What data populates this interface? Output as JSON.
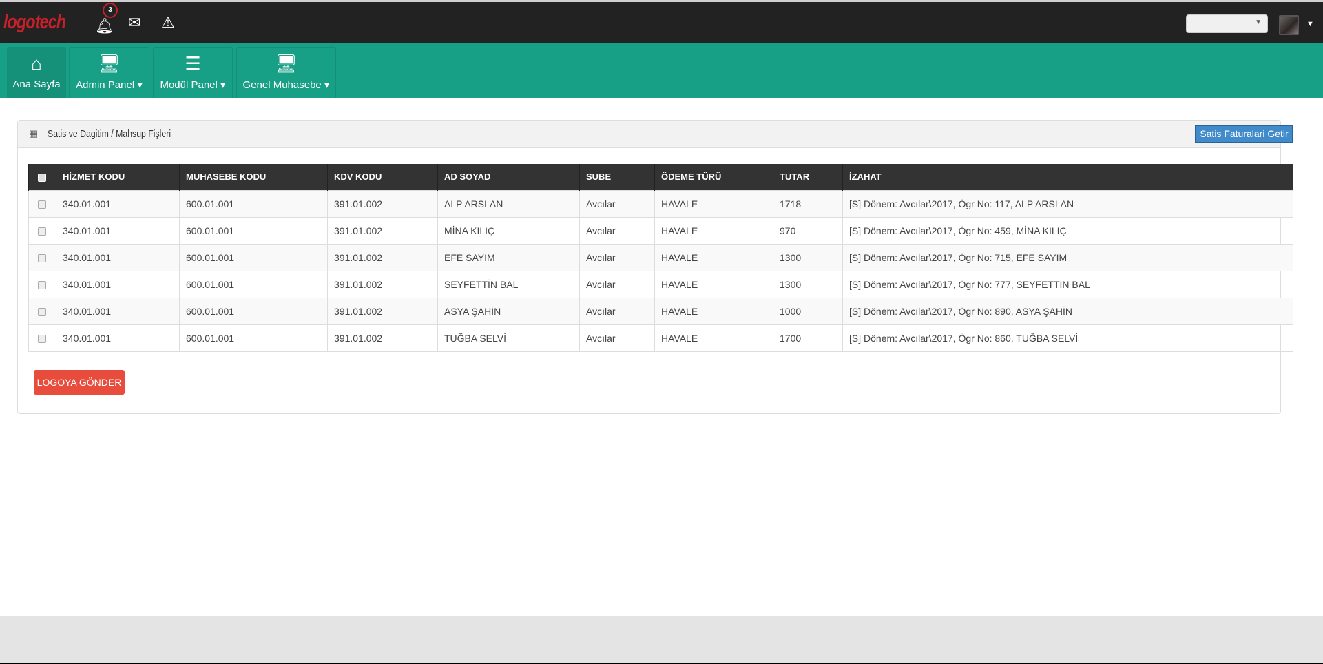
{
  "brand": {
    "logo": "logotech",
    "accent": "#17a086",
    "logo_color": "#c8202a"
  },
  "topbar": {
    "notifications_count": "3",
    "icons": [
      "bell-icon",
      "envelope-icon",
      "warning-icon"
    ],
    "select_value": ""
  },
  "nav": [
    {
      "label": "Ana Sayfa",
      "icon": "home-icon"
    },
    {
      "label": "Admin Panel",
      "icon": "desktop-icon"
    },
    {
      "label": "Modül Panel",
      "icon": "align-left-icon"
    },
    {
      "label": "Genel Muhasebe",
      "icon": "desktop-icon"
    }
  ],
  "panel": {
    "title": "Satis ve Dagitim / Mahsup Fişleri",
    "fetch_button": "Satis Faturalari Getir",
    "send_button": "LOGOYA GÖNDER"
  },
  "table": {
    "headers": [
      "HİZMET KODU",
      "MUHASEBE KODU",
      "KDV KODU",
      "AD SOYAD",
      "SUBE",
      "ÖDEME TÜRÜ",
      "TUTAR",
      "İZAHAT"
    ],
    "rows": [
      [
        "340.01.001",
        "600.01.001",
        "391.01.002",
        "ALP ARSLAN",
        "Avcılar",
        "HAVALE",
        "1718",
        "[S] Dönem: Avcılar\\2017, Ögr No: 117, ALP ARSLAN"
      ],
      [
        "340.01.001",
        "600.01.001",
        "391.01.002",
        "MİNA KILIÇ",
        "Avcılar",
        "HAVALE",
        "970",
        "[S] Dönem: Avcılar\\2017, Ögr No: 459, MİNA KILIÇ"
      ],
      [
        "340.01.001",
        "600.01.001",
        "391.01.002",
        "EFE SAYIM",
        "Avcılar",
        "HAVALE",
        "1300",
        "[S] Dönem: Avcılar\\2017, Ögr No: 715, EFE SAYIM"
      ],
      [
        "340.01.001",
        "600.01.001",
        "391.01.002",
        "SEYFETTİN BAL",
        "Avcılar",
        "HAVALE",
        "1300",
        "[S] Dönem: Avcılar\\2017, Ögr No: 777, SEYFETTİN BAL"
      ],
      [
        "340.01.001",
        "600.01.001",
        "391.01.002",
        "ASYA ŞAHİN",
        "Avcılar",
        "HAVALE",
        "1000",
        "[S] Dönem: Avcılar\\2017, Ögr No: 890, ASYA ŞAHİN"
      ],
      [
        "340.01.001",
        "600.01.001",
        "391.01.002",
        "TUĞBA SELVİ",
        "Avcılar",
        "HAVALE",
        "1700",
        "[S] Dönem: Avcılar\\2017, Ögr No: 860, TUĞBA SELVİ"
      ]
    ]
  }
}
